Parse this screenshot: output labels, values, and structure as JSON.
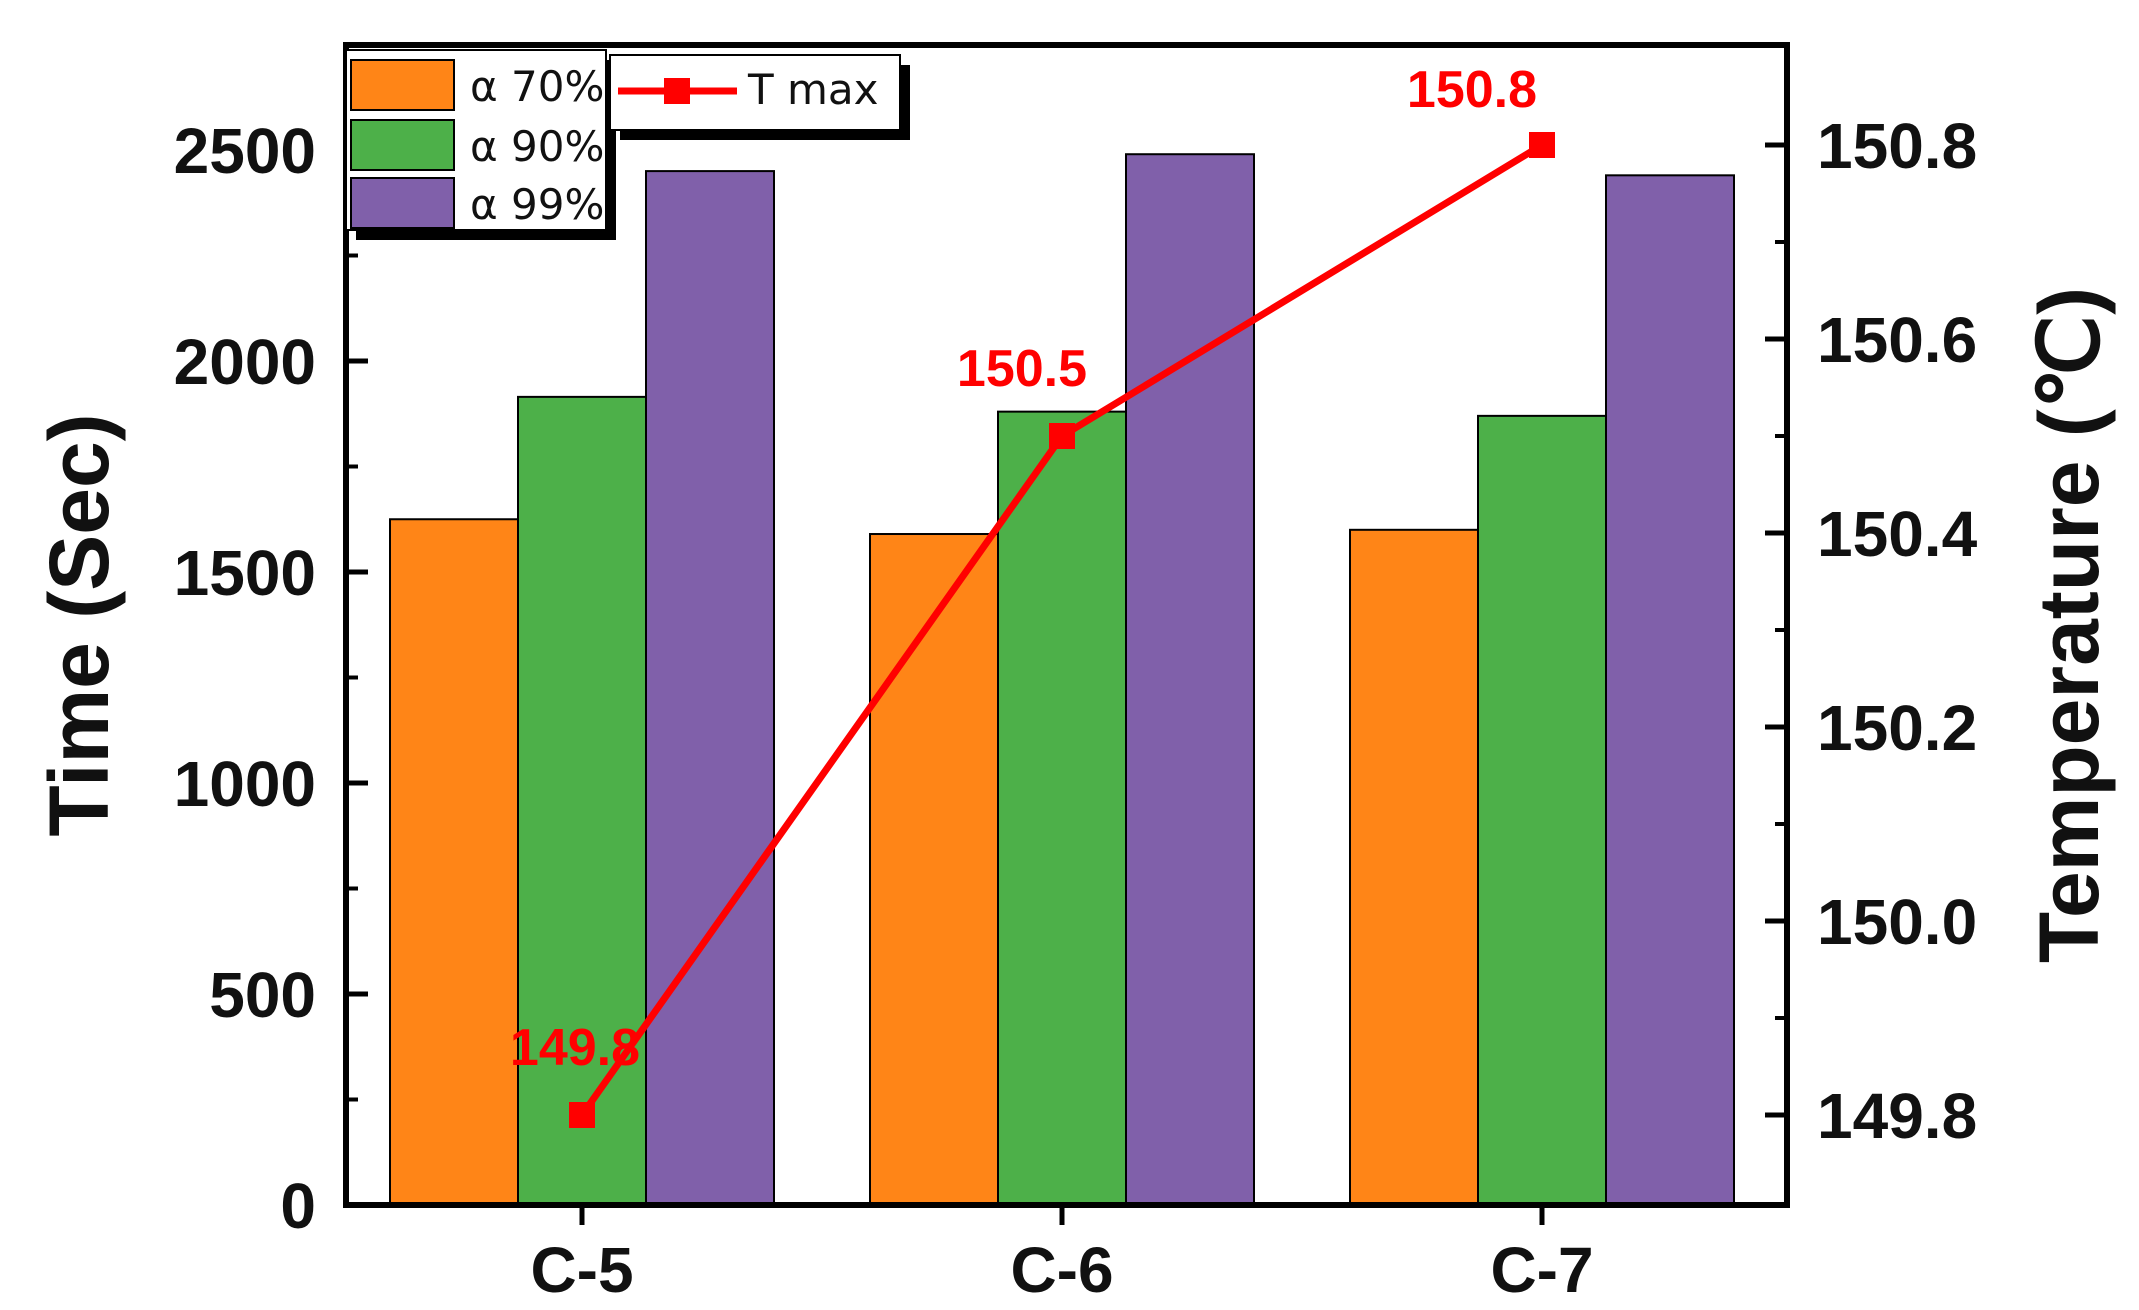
{
  "chart_data": {
    "type": "bar",
    "title": "",
    "categories": [
      "C-5",
      "C-6",
      "C-7"
    ],
    "series": [
      {
        "name": "α 70%",
        "color": "#ff8517",
        "values": [
          1625,
          1590,
          1600
        ]
      },
      {
        "name": "α 90%",
        "color": "#4db049",
        "values": [
          1915,
          1880,
          1870
        ]
      },
      {
        "name": "α 99%",
        "color": "#8060aa",
        "values": [
          2450,
          2490,
          2440
        ]
      }
    ],
    "line_series": {
      "name": "T max",
      "color": "#ff0000",
      "axis": "right",
      "values": [
        149.8,
        150.5,
        150.8
      ],
      "labels": [
        "149.8",
        "150.5",
        "150.8"
      ]
    },
    "ylabel": "Time (Sec)",
    "ylim": [
      0,
      2700
    ],
    "yticks": [
      0,
      500,
      1000,
      1500,
      2000,
      2500
    ],
    "ytick_labels": [
      "0",
      "500",
      "1000",
      "1500",
      "2000",
      "2500"
    ],
    "y2label": "Temperature (℃)",
    "y2lim": [
      149.675,
      150.875
    ],
    "y2ticks": [
      149.8,
      150.0,
      150.2,
      150.4,
      150.6,
      150.8
    ],
    "y2tick_labels": [
      "149.8",
      "150.0",
      "150.2",
      "150.4",
      "150.6",
      "150.8"
    ],
    "legend_position": "top-left",
    "grid": false
  }
}
